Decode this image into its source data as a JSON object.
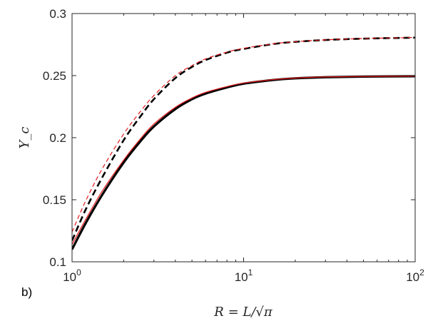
{
  "chart_data": {
    "type": "line",
    "panel_label": "b)",
    "xlabel": "R = L/√π",
    "ylabel": "Y_c",
    "xscale": "log",
    "xlim": [
      1,
      100
    ],
    "ylim": [
      0.1,
      0.3
    ],
    "grid": false,
    "x_ticks": [
      {
        "base": "10",
        "exp": "0",
        "value": 1
      },
      {
        "base": "10",
        "exp": "1",
        "value": 10
      },
      {
        "base": "10",
        "exp": "2",
        "value": 100
      }
    ],
    "y_ticks": [
      {
        "label": "0.1",
        "value": 0.1
      },
      {
        "label": "0.15",
        "value": 0.15
      },
      {
        "label": "0.2",
        "value": 0.2
      },
      {
        "label": "0.25",
        "value": 0.25
      },
      {
        "label": "0.3",
        "value": 0.3
      }
    ],
    "series": [
      {
        "color": "#000000",
        "style": "solid",
        "width": 3.2,
        "x": [
          1,
          1.2,
          1.5,
          2,
          2.5,
          3,
          4,
          5,
          6,
          8,
          10,
          15,
          20,
          30,
          50,
          100
        ],
        "y": [
          0.11,
          0.131,
          0.154,
          0.18,
          0.197,
          0.209,
          0.223,
          0.231,
          0.2355,
          0.2405,
          0.2435,
          0.2465,
          0.2478,
          0.2487,
          0.2492,
          0.2495
        ]
      },
      {
        "color": "#e41a1c",
        "style": "solid",
        "width": 1.2,
        "x": [
          1,
          1.2,
          1.5,
          2,
          2.5,
          3,
          4,
          5,
          6,
          8,
          10,
          15,
          20,
          30,
          50,
          100
        ],
        "y": [
          0.114,
          0.134,
          0.157,
          0.182,
          0.199,
          0.211,
          0.2245,
          0.232,
          0.2365,
          0.2412,
          0.244,
          0.2468,
          0.248,
          0.2489,
          0.2493,
          0.2496
        ]
      },
      {
        "color": "#000000",
        "style": "dashed",
        "width": 2.6,
        "x": [
          1,
          1.2,
          1.5,
          2,
          2.5,
          3,
          4,
          5,
          6,
          8,
          10,
          15,
          20,
          30,
          50,
          100
        ],
        "y": [
          0.117,
          0.142,
          0.168,
          0.198,
          0.217,
          0.231,
          0.248,
          0.257,
          0.2625,
          0.2685,
          0.2715,
          0.2755,
          0.2772,
          0.2787,
          0.2798,
          0.2806
        ]
      },
      {
        "color": "#e41a1c",
        "style": "dashed",
        "width": 1.2,
        "x": [
          1,
          1.2,
          1.5,
          2,
          2.5,
          3,
          4,
          5,
          6,
          8,
          10,
          15,
          20,
          30,
          50,
          100
        ],
        "y": [
          0.124,
          0.149,
          0.175,
          0.203,
          0.221,
          0.234,
          0.25,
          0.258,
          0.2635,
          0.269,
          0.272,
          0.2757,
          0.2773,
          0.2788,
          0.2799,
          0.2807
        ]
      }
    ]
  }
}
